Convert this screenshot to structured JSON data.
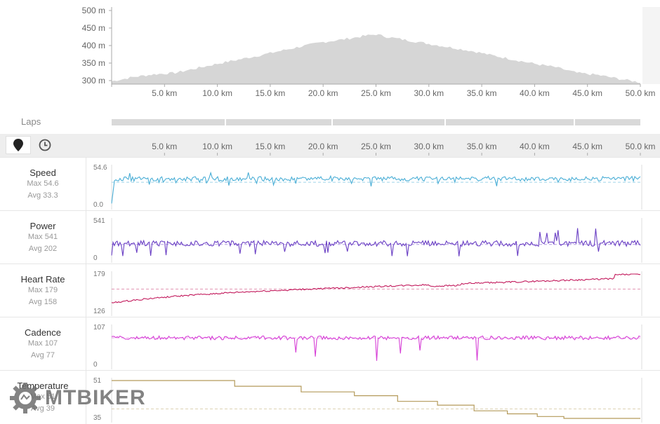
{
  "elevation": {
    "y_ticks": [
      "500 m",
      "450 m",
      "400 m",
      "350 m",
      "300 m"
    ],
    "y_values": [
      500,
      450,
      400,
      350,
      300
    ],
    "x_ticks": [
      "5.0 km",
      "10.0 km",
      "15.0 km",
      "20.0 km",
      "25.0 km",
      "30.0 km",
      "35.0 km",
      "40.0 km",
      "45.0 km",
      "50.0 km"
    ],
    "fill_color": "#d6d6d6"
  },
  "laps": {
    "label": "Laps",
    "segments_km": [
      [
        0,
        10.7
      ],
      [
        10.8,
        20.8
      ],
      [
        20.9,
        31.5
      ],
      [
        31.6,
        43.7
      ],
      [
        43.8,
        50.0
      ]
    ]
  },
  "toolbar": {
    "map_icon": "map-pin-icon",
    "time_icon": "clock-icon"
  },
  "tracks": [
    {
      "name": "Speed",
      "max": "Max 54.6",
      "avg": "Avg 33.3",
      "top_label": "54.6",
      "bottom_label": "0.0",
      "color": "#4aaed6"
    },
    {
      "name": "Power",
      "max": "Max 541",
      "avg": "Avg 202",
      "top_label": "541",
      "bottom_label": "0",
      "color": "#6a3fc4"
    },
    {
      "name": "Heart Rate",
      "max": "Max 179",
      "avg": "Avg 158",
      "top_label": "179",
      "bottom_label": "126",
      "color": "#c2185b"
    },
    {
      "name": "Cadence",
      "max": "Max 107",
      "avg": "Avg 77",
      "top_label": "107",
      "bottom_label": "0",
      "color": "#d63fd6"
    },
    {
      "name": "Temperature",
      "max": "Max 51",
      "avg": "Avg 39",
      "top_label": "51",
      "bottom_label": "35",
      "color": "#b49a5a"
    }
  ],
  "watermark": "MTBIKER",
  "chart_data": [
    {
      "type": "area",
      "x": [
        0,
        2,
        4,
        6,
        8,
        10,
        12,
        14,
        16,
        18,
        20,
        22,
        24,
        25,
        26,
        28,
        30,
        32,
        34,
        36,
        38,
        40,
        42,
        44,
        46,
        48,
        50
      ],
      "series": [
        {
          "values": [
            298,
            310,
            318,
            322,
            335,
            348,
            360,
            372,
            385,
            398,
            410,
            418,
            428,
            432,
            425,
            415,
            405,
            395,
            385,
            372,
            360,
            348,
            338,
            322,
            316,
            305,
            295
          ]
        }
      ],
      "ylim": [
        290,
        510
      ],
      "xlim": [
        0,
        50
      ]
    },
    {
      "type": "line",
      "x": [
        0,
        50
      ],
      "series": [
        {
          "name": "Speed",
          "max": 54.6,
          "avg": 33.3,
          "ylim": [
            0,
            54.6
          ]
        },
        {
          "name": "Power",
          "max": 541,
          "avg": 202,
          "ylim": [
            0,
            541
          ]
        },
        {
          "name": "Heart Rate",
          "max": 179,
          "avg": 158,
          "ylim": [
            126,
            179
          ]
        },
        {
          "name": "Cadence",
          "max": 107,
          "avg": 77,
          "ylim": [
            0,
            107
          ]
        },
        {
          "name": "Temperature",
          "max": 51,
          "avg": 39,
          "ylim": [
            35,
            51
          ]
        }
      ]
    }
  ]
}
